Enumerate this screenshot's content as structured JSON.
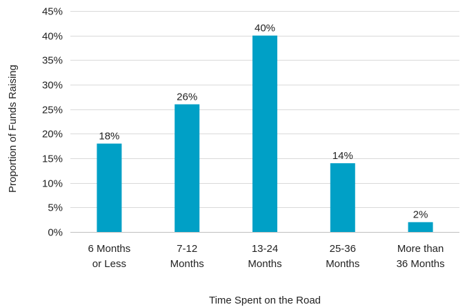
{
  "chart_data": {
    "type": "bar",
    "categories": [
      [
        "6 Months",
        "or Less"
      ],
      [
        "7-12",
        "Months"
      ],
      [
        "13-24",
        "Months"
      ],
      [
        "25-36",
        "Months"
      ],
      [
        "More than",
        "36 Months"
      ]
    ],
    "values": [
      18,
      26,
      40,
      14,
      2
    ],
    "data_labels": [
      "18%",
      "26%",
      "40%",
      "14%",
      "2%"
    ],
    "ylim": [
      0,
      45
    ],
    "yticks": [
      0,
      5,
      10,
      15,
      20,
      25,
      30,
      35,
      40,
      45
    ],
    "ytick_labels": [
      "0%",
      "5%",
      "10%",
      "15%",
      "20%",
      "25%",
      "30%",
      "35%",
      "40%",
      "45%"
    ],
    "xlabel": "Time Spent on the Road",
    "ylabel": "Proportion of Funds Raising",
    "grid": true,
    "legend": "none",
    "bar_color": "#00a0c6"
  }
}
